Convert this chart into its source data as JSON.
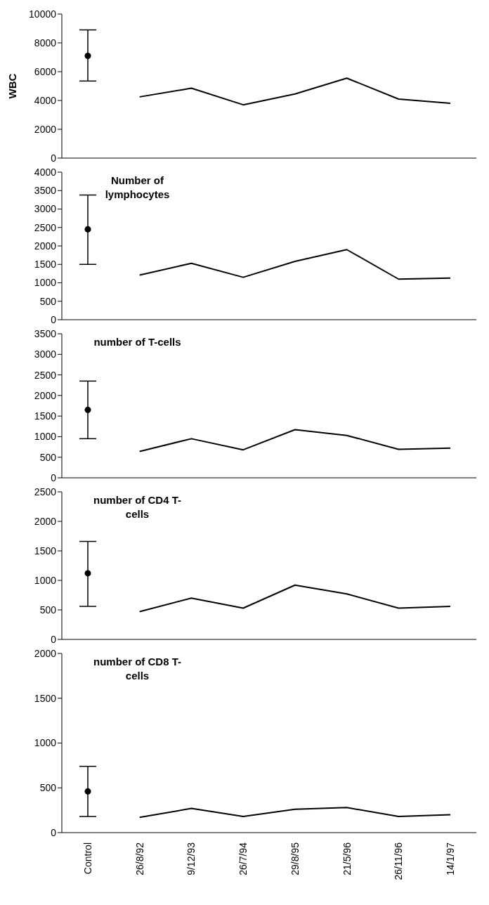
{
  "chart_data": [
    {
      "type": "line",
      "ylabel": "WBC",
      "categories": [
        null,
        null,
        null,
        null,
        null,
        null,
        null,
        null
      ],
      "ylim": [
        0,
        10000
      ],
      "yticks": [
        0,
        2000,
        4000,
        6000,
        8000,
        10000
      ],
      "tick_labels": "y",
      "series": [
        {
          "type": "scatter",
          "color": "#000000",
          "marker": "circle",
          "values": [
            7100,
            null,
            null,
            null,
            null,
            null,
            null,
            null
          ],
          "errors": [
            [
              5350,
              8900
            ],
            null,
            null,
            null,
            null,
            null,
            null,
            null
          ]
        },
        {
          "type": "line",
          "color": "#000000",
          "marker": "none",
          "line_style": "solid",
          "values": [
            null,
            4250,
            4850,
            3700,
            4450,
            5550,
            4100,
            3800
          ]
        }
      ]
    },
    {
      "type": "line",
      "title": "Number of lymphocytes",
      "categories": [
        null,
        null,
        null,
        null,
        null,
        null,
        null,
        null
      ],
      "ylim": [
        0,
        4000
      ],
      "yticks": [
        0,
        500,
        1000,
        1500,
        2000,
        2500,
        3000,
        3500,
        4000
      ],
      "tick_labels": "y",
      "series": [
        {
          "type": "scatter",
          "color": "#000000",
          "marker": "circle",
          "values": [
            2450,
            null,
            null,
            null,
            null,
            null,
            null,
            null
          ],
          "errors": [
            [
              1500,
              3380
            ],
            null,
            null,
            null,
            null,
            null,
            null,
            null
          ]
        },
        {
          "type": "line",
          "color": "#000000",
          "marker": "none",
          "line_style": "solid",
          "values": [
            null,
            1210,
            1530,
            1150,
            1580,
            1900,
            1100,
            1130
          ]
        }
      ]
    },
    {
      "type": "line",
      "title": "number of T-cells",
      "categories": [
        null,
        null,
        null,
        null,
        null,
        null,
        null,
        null
      ],
      "ylim": [
        0,
        3500
      ],
      "yticks": [
        0,
        500,
        1000,
        1500,
        2000,
        2500,
        3000,
        3500
      ],
      "tick_labels": "y",
      "series": [
        {
          "type": "scatter",
          "color": "#000000",
          "marker": "circle",
          "values": [
            1650,
            null,
            null,
            null,
            null,
            null,
            null,
            null
          ],
          "errors": [
            [
              950,
              2350
            ],
            null,
            null,
            null,
            null,
            null,
            null,
            null
          ]
        },
        {
          "type": "line",
          "color": "#000000",
          "marker": "none",
          "line_style": "solid",
          "values": [
            null,
            640,
            950,
            680,
            1170,
            1030,
            690,
            720
          ]
        }
      ]
    },
    {
      "type": "line",
      "title": "number of CD4 T-cells",
      "categories": [
        null,
        null,
        null,
        null,
        null,
        null,
        null,
        null
      ],
      "ylim": [
        0,
        2500
      ],
      "yticks": [
        0,
        500,
        1000,
        1500,
        2000,
        2500
      ],
      "tick_labels": "y",
      "series": [
        {
          "type": "scatter",
          "color": "#000000",
          "marker": "circle",
          "values": [
            1120,
            null,
            null,
            null,
            null,
            null,
            null,
            null
          ],
          "errors": [
            [
              560,
              1660
            ],
            null,
            null,
            null,
            null,
            null,
            null,
            null
          ]
        },
        {
          "type": "line",
          "color": "#000000",
          "marker": "none",
          "line_style": "solid",
          "values": [
            null,
            470,
            700,
            530,
            920,
            770,
            530,
            560
          ]
        }
      ]
    },
    {
      "type": "line",
      "title": "number of CD8 T-cells",
      "categories": [
        "Control",
        "26/8/92",
        "9/12/93",
        "26/7/94",
        "29/8/95",
        "21/5/96",
        "26/11/96",
        "14/1/97"
      ],
      "ylim": [
        0,
        2000
      ],
      "yticks": [
        0,
        500,
        1000,
        1500,
        2000
      ],
      "series": [
        {
          "type": "scatter",
          "color": "#000000",
          "marker": "circle",
          "values": [
            460,
            null,
            null,
            null,
            null,
            null,
            null,
            null
          ],
          "errors": [
            [
              180,
              740
            ],
            null,
            null,
            null,
            null,
            null,
            null,
            null
          ]
        },
        {
          "type": "line",
          "color": "#000000",
          "marker": "none",
          "line_style": "solid",
          "values": [
            null,
            170,
            270,
            180,
            260,
            280,
            180,
            200
          ]
        }
      ]
    }
  ]
}
